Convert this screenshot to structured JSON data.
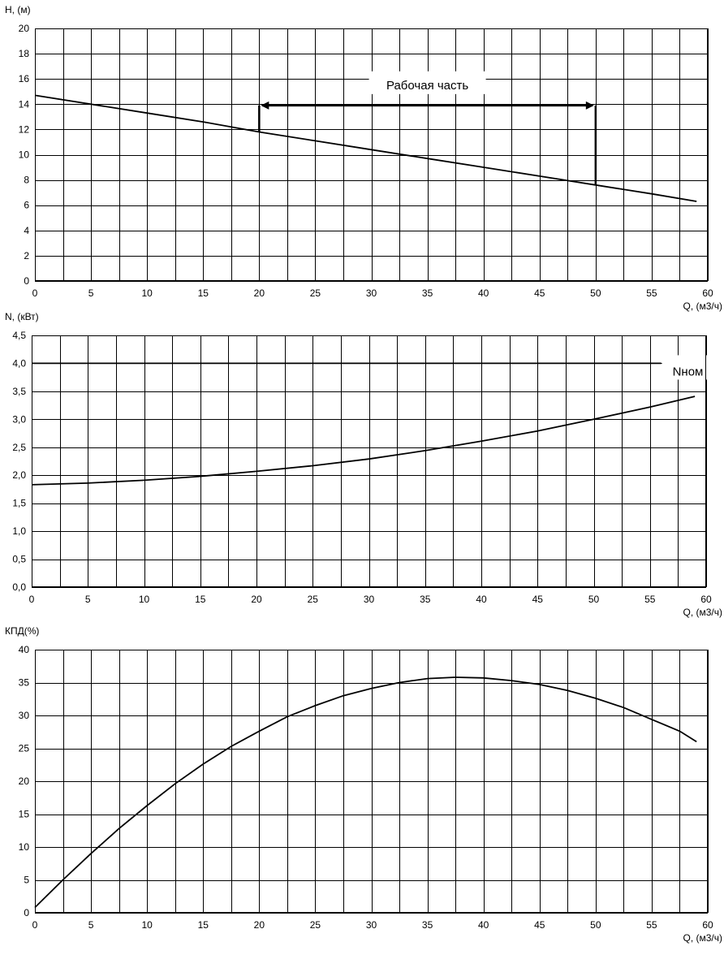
{
  "chart_data": [
    {
      "type": "line",
      "ylabel": "H, (м)",
      "xlabel": "Q, (м3/ч)",
      "xlim": [
        0,
        60
      ],
      "ylim": [
        0,
        20
      ],
      "xticks": [
        "0",
        "5",
        "10",
        "15",
        "20",
        "25",
        "30",
        "35",
        "40",
        "45",
        "50",
        "55",
        "60"
      ],
      "yticks": [
        "0",
        "2",
        "4",
        "6",
        "8",
        "10",
        "12",
        "14",
        "16",
        "18",
        "20"
      ],
      "grid": true,
      "series": [
        {
          "x": [
            0,
            5,
            10,
            15,
            20,
            25,
            30,
            35,
            40,
            45,
            50,
            55,
            59
          ],
          "y": [
            14.7,
            14.0,
            13.3,
            12.6,
            11.8,
            11.1,
            10.4,
            9.7,
            9.0,
            8.3,
            7.6,
            6.9,
            6.3
          ]
        }
      ],
      "annotations": [
        {
          "text": "Рабочая часть",
          "x_range": [
            20,
            50
          ]
        }
      ]
    },
    {
      "type": "line",
      "ylabel": "N, (кВт)",
      "xlabel": "Q, (м3/ч)",
      "xlim": [
        0,
        60
      ],
      "ylim": [
        0,
        4.5
      ],
      "xticks": [
        "0",
        "5",
        "10",
        "15",
        "20",
        "25",
        "30",
        "35",
        "40",
        "45",
        "50",
        "55",
        "60"
      ],
      "yticks": [
        "0,0",
        "0,5",
        "1,0",
        "1,5",
        "2,0",
        "2,5",
        "3,0",
        "3,5",
        "4,0",
        "4,5"
      ],
      "grid": true,
      "series": [
        {
          "x": [
            0,
            5,
            10,
            15,
            20,
            25,
            30,
            35,
            40,
            45,
            50,
            55,
            59
          ],
          "y": [
            1.83,
            1.86,
            1.91,
            1.98,
            2.07,
            2.17,
            2.29,
            2.44,
            2.61,
            2.79,
            3.0,
            3.22,
            3.41
          ]
        },
        {
          "name": "Nном",
          "x": [
            0,
            56
          ],
          "y": [
            4.0,
            4.0
          ]
        }
      ]
    },
    {
      "type": "line",
      "ylabel": "КПД(%)",
      "xlabel": "Q, (м3/ч)",
      "xlim": [
        0,
        60
      ],
      "ylim": [
        0,
        40
      ],
      "xticks": [
        "0",
        "5",
        "10",
        "15",
        "20",
        "25",
        "30",
        "35",
        "40",
        "45",
        "50",
        "55",
        "60"
      ],
      "yticks": [
        "0",
        "5",
        "10",
        "15",
        "20",
        "25",
        "30",
        "35",
        "40"
      ],
      "grid": true,
      "series": [
        {
          "x": [
            0,
            2.5,
            5,
            7.5,
            10,
            12.5,
            15,
            17.5,
            20,
            22.5,
            25,
            27.5,
            30,
            32.5,
            35,
            37.5,
            40,
            42.5,
            45,
            47.5,
            50,
            52.5,
            55,
            57.5,
            59
          ],
          "y": [
            0.8,
            5.0,
            9.0,
            12.8,
            16.3,
            19.6,
            22.6,
            25.3,
            27.6,
            29.8,
            31.5,
            33.0,
            34.1,
            35.0,
            35.6,
            35.8,
            35.7,
            35.3,
            34.7,
            33.8,
            32.6,
            31.2,
            29.4,
            27.6,
            26.0
          ]
        }
      ]
    }
  ]
}
